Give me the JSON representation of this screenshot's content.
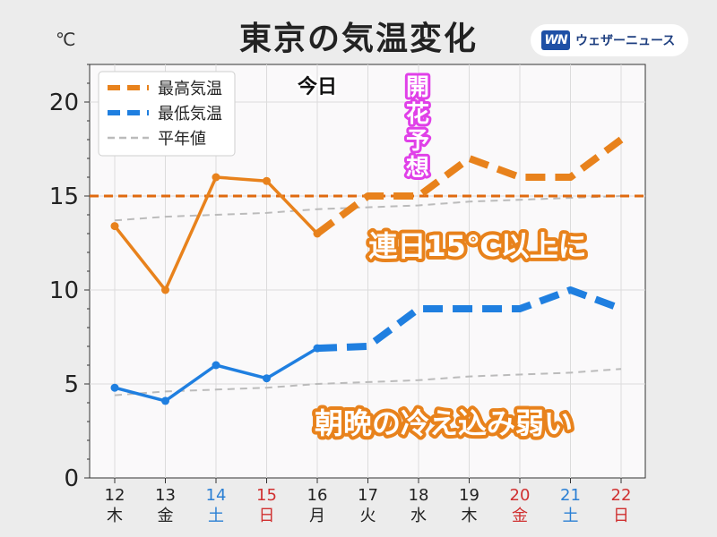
{
  "header": {
    "title": "東京の気温変化",
    "unit": "℃",
    "brand_logo": "WN",
    "brand_name": "ウェザーニュース"
  },
  "chart_data": {
    "type": "line",
    "title": "東京の気温変化",
    "ylabel": "℃",
    "ylim": [
      0,
      22
    ],
    "yticks": [
      "0",
      "5",
      "10",
      "15",
      "20"
    ],
    "grid": true,
    "legend_position": "top-left",
    "categories": [
      {
        "day": "12",
        "dow": "木"
      },
      {
        "day": "13",
        "dow": "金"
      },
      {
        "day": "14",
        "dow": "土"
      },
      {
        "day": "15",
        "dow": "日"
      },
      {
        "day": "16",
        "dow": "月"
      },
      {
        "day": "17",
        "dow": "火"
      },
      {
        "day": "18",
        "dow": "水"
      },
      {
        "day": "19",
        "dow": "木"
      },
      {
        "day": "20",
        "dow": "金"
      },
      {
        "day": "21",
        "dow": "土"
      },
      {
        "day": "22",
        "dow": "日"
      }
    ],
    "category_colors": [
      "#222222",
      "#222222",
      "#2a7fd4",
      "#d03030",
      "#222222",
      "#222222",
      "#222222",
      "#222222",
      "#d03030",
      "#2a7fd4",
      "#d03030"
    ],
    "series": [
      {
        "name": "最高気温",
        "color": "#e8821c",
        "values": [
          13.4,
          10.0,
          16.0,
          15.8,
          13.0,
          15.0,
          15.0,
          17.0,
          16.0,
          16.0,
          18.0
        ],
        "observed_count": 5
      },
      {
        "name": "最低気温",
        "color": "#1f7fe0",
        "values": [
          4.8,
          4.1,
          6.0,
          5.3,
          6.9,
          7.0,
          9.0,
          9.0,
          9.0,
          10.0,
          9.0
        ],
        "observed_count": 5
      },
      {
        "name": "平年値",
        "color": "#bbbbbb",
        "values_high": [
          13.7,
          13.9,
          14.0,
          14.1,
          14.3,
          14.4,
          14.5,
          14.7,
          14.8,
          14.9,
          15.0
        ],
        "values_low": [
          4.4,
          4.6,
          4.7,
          4.8,
          5.0,
          5.1,
          5.2,
          5.4,
          5.5,
          5.6,
          5.8
        ]
      }
    ],
    "reference_line": {
      "value": 15,
      "color": "#e06a10"
    },
    "annotations": {
      "today": "今日",
      "bloom": "開花予想",
      "msg_high": "連日15℃以上に",
      "msg_low": "朝晩の冷え込み弱い"
    }
  }
}
